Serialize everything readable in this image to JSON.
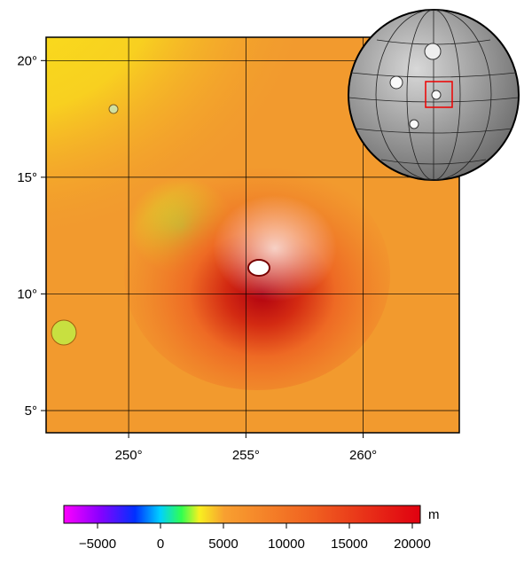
{
  "map": {
    "xlim": [
      246.48,
      264.1
    ],
    "ylim": [
      4.05,
      21
    ],
    "xticks": [
      {
        "value": 250,
        "label": "250°"
      },
      {
        "value": 255,
        "label": "255°"
      },
      {
        "value": 260,
        "label": "260°"
      }
    ],
    "yticks": [
      {
        "value": 5,
        "label": "5°"
      },
      {
        "value": 10,
        "label": "10°"
      },
      {
        "value": 15,
        "label": "15°"
      },
      {
        "value": 20,
        "label": "20°"
      }
    ]
  },
  "colorbar": {
    "lim": [
      -7676,
      20634
    ],
    "ticks": [
      {
        "value": -5000,
        "label": "−5000"
      },
      0,
      5000,
      10000,
      15000,
      20000
    ],
    "unit": "m"
  }
}
